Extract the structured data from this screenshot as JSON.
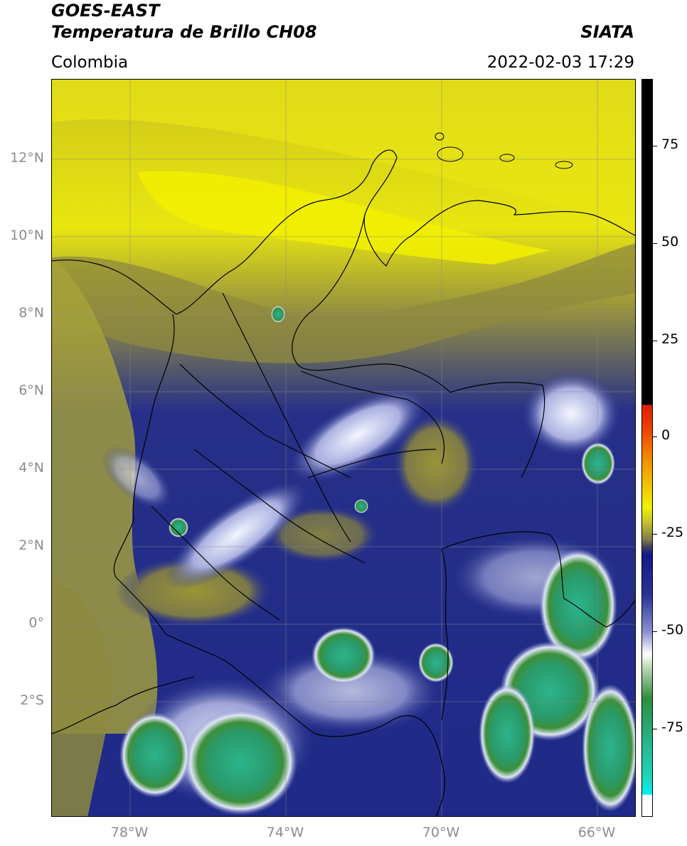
{
  "header": {
    "satellite": "GOES-EAST",
    "product": "Temperatura de Brillo CH08",
    "region": "Colombia",
    "organization": "SIATA",
    "timestamp": "2022-02-03 17:29"
  },
  "axes": {
    "lat_ticks": [
      "12°N",
      "10°N",
      "8°N",
      "6°N",
      "4°N",
      "2°N",
      "0°",
      "2°S"
    ],
    "lon_ticks": [
      "78°W",
      "74°W",
      "70°W",
      "66°W"
    ]
  },
  "colorbar": {
    "ticks": [
      "75",
      "50",
      "25",
      "0",
      "-25",
      "-50",
      "-75"
    ],
    "colors": {
      "warm_black": "#000000",
      "red": "#e01b00",
      "orange": "#f08c00",
      "yellow": "#f2f200",
      "olive": "#8c8a3c",
      "navy": "#121a86",
      "lavender": "#b8bce8",
      "white": "#ffffff",
      "green": "#2e8f3c",
      "teal": "#27c7a0",
      "cyan": "#00f0f0"
    }
  }
}
